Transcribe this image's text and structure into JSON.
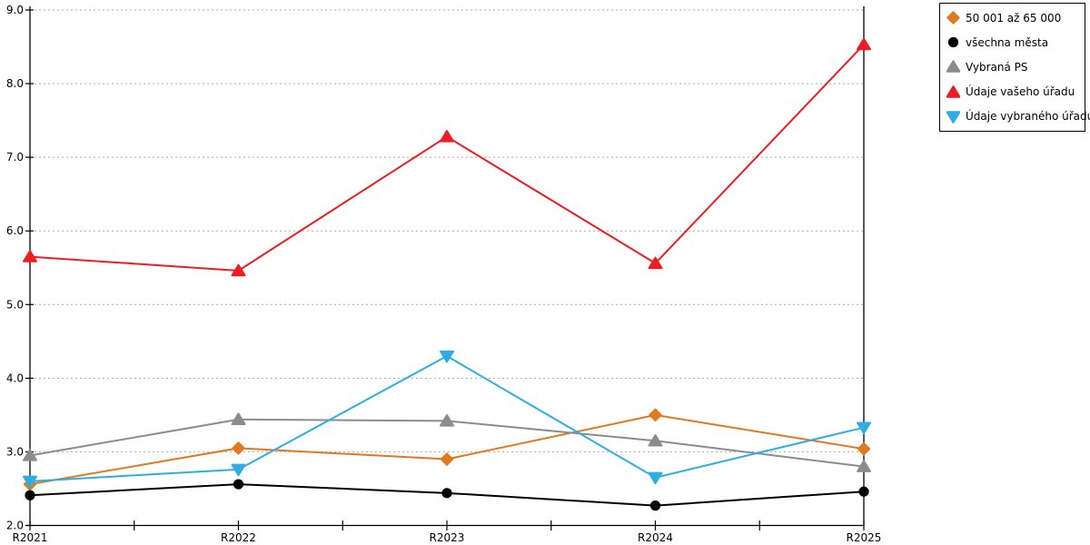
{
  "chart_data": {
    "type": "line",
    "categories": [
      "R2021",
      "R2022",
      "R2023",
      "R2024",
      "R2025"
    ],
    "series": [
      {
        "name": "50 001 až 65 000",
        "marker": "diamond",
        "color": "#e0791f",
        "values": [
          2.56,
          3.05,
          2.9,
          3.5,
          3.04
        ]
      },
      {
        "name": "všechna města",
        "marker": "circle",
        "color": "#000000",
        "values": [
          2.41,
          2.56,
          2.44,
          2.27,
          2.46
        ]
      },
      {
        "name": "Vybraná PS",
        "marker": "triangle-up",
        "color": "#8c8c8c",
        "values": [
          2.95,
          3.44,
          3.42,
          3.15,
          2.8
        ]
      },
      {
        "name": "Údaje vašeho úřadu",
        "marker": "triangle-up",
        "color": "#ee1c23",
        "values": [
          5.65,
          5.46,
          7.28,
          5.56,
          8.53
        ]
      },
      {
        "name": "Údaje vybraného úřadu",
        "marker": "triangle-down",
        "color": "#2caee5",
        "values": [
          2.6,
          2.76,
          4.3,
          2.65,
          3.33
        ]
      }
    ],
    "title": "",
    "xlabel": "",
    "ylabel": "",
    "ylim": [
      2.0,
      9.0
    ],
    "ytick_step": 1.0,
    "ytick_labels": [
      "2.0",
      "3.0",
      "4.0",
      "5.0",
      "6.0",
      "7.0",
      "8.0",
      "9.0"
    ],
    "grid": "horizontal-dashed",
    "gridline_color": "#ababab",
    "axis_color": "#000000",
    "legend_position": "top-right"
  }
}
